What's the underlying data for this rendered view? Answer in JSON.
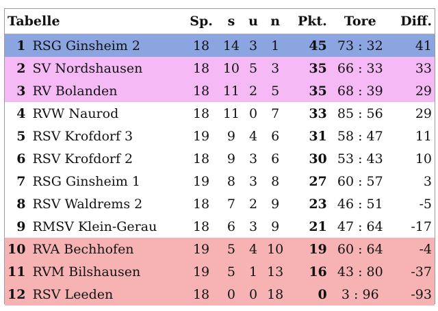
{
  "table": {
    "headers": {
      "title": "Tabelle",
      "games": "Sp.",
      "wins": "s",
      "draws": "u",
      "losses": "n",
      "points": "Pkt.",
      "goals": "Tore",
      "diff": "Diff."
    },
    "rows": [
      {
        "rank": "1",
        "team": "RSG Ginsheim 2",
        "games": "18",
        "wins": "14",
        "draws": "3",
        "losses": "1",
        "points": "45",
        "goals": "73 : 32",
        "diff": "41",
        "color": "#8ba5e0"
      },
      {
        "rank": "2",
        "team": "SV Nordshausen",
        "games": "18",
        "wins": "10",
        "draws": "5",
        "losses": "3",
        "points": "35",
        "goals": "66 : 33",
        "diff": "33",
        "color": "#f5b9f5"
      },
      {
        "rank": "3",
        "team": "RV Bolanden",
        "games": "18",
        "wins": "11",
        "draws": "2",
        "losses": "5",
        "points": "35",
        "goals": "68 : 39",
        "diff": "29",
        "color": "#f5b9f5"
      },
      {
        "rank": "4",
        "team": "RVW Naurod",
        "games": "18",
        "wins": "11",
        "draws": "0",
        "losses": "7",
        "points": "33",
        "goals": "85 : 56",
        "diff": "29",
        "color": "#ffffff"
      },
      {
        "rank": "5",
        "team": "RSV Krofdorf 3",
        "games": "19",
        "wins": "9",
        "draws": "4",
        "losses": "6",
        "points": "31",
        "goals": "58 : 47",
        "diff": "11",
        "color": "#ffffff"
      },
      {
        "rank": "6",
        "team": "RSV Krofdorf 2",
        "games": "18",
        "wins": "9",
        "draws": "3",
        "losses": "6",
        "points": "30",
        "goals": "53 : 43",
        "diff": "10",
        "color": "#ffffff"
      },
      {
        "rank": "7",
        "team": "RSG Ginsheim 1",
        "games": "19",
        "wins": "8",
        "draws": "3",
        "losses": "8",
        "points": "27",
        "goals": "60 : 57",
        "diff": "3",
        "color": "#ffffff"
      },
      {
        "rank": "8",
        "team": "RSV Waldrems 2",
        "games": "18",
        "wins": "7",
        "draws": "2",
        "losses": "9",
        "points": "23",
        "goals": "46 : 51",
        "diff": "-5",
        "color": "#ffffff"
      },
      {
        "rank": "9",
        "team": "RMSV Klein-Gerau",
        "games": "18",
        "wins": "6",
        "draws": "3",
        "losses": "9",
        "points": "21",
        "goals": "47 : 64",
        "diff": "-17",
        "color": "#ffffff"
      },
      {
        "rank": "10",
        "team": "RVA Bechhofen",
        "games": "19",
        "wins": "5",
        "draws": "4",
        "losses": "10",
        "points": "19",
        "goals": "60 : 64",
        "diff": "-4",
        "color": "#f7b3b3"
      },
      {
        "rank": "11",
        "team": "RVM Bilshausen",
        "games": "19",
        "wins": "5",
        "draws": "1",
        "losses": "13",
        "points": "16",
        "goals": "43 : 80",
        "diff": "-37",
        "color": "#f7b3b3"
      },
      {
        "rank": "12",
        "team": "RSV Leeden",
        "games": "18",
        "wins": "0",
        "draws": "0",
        "losses": "18",
        "points": "0",
        "goals": "3 : 96",
        "diff": "-93",
        "color": "#f7b3b3"
      }
    ]
  }
}
